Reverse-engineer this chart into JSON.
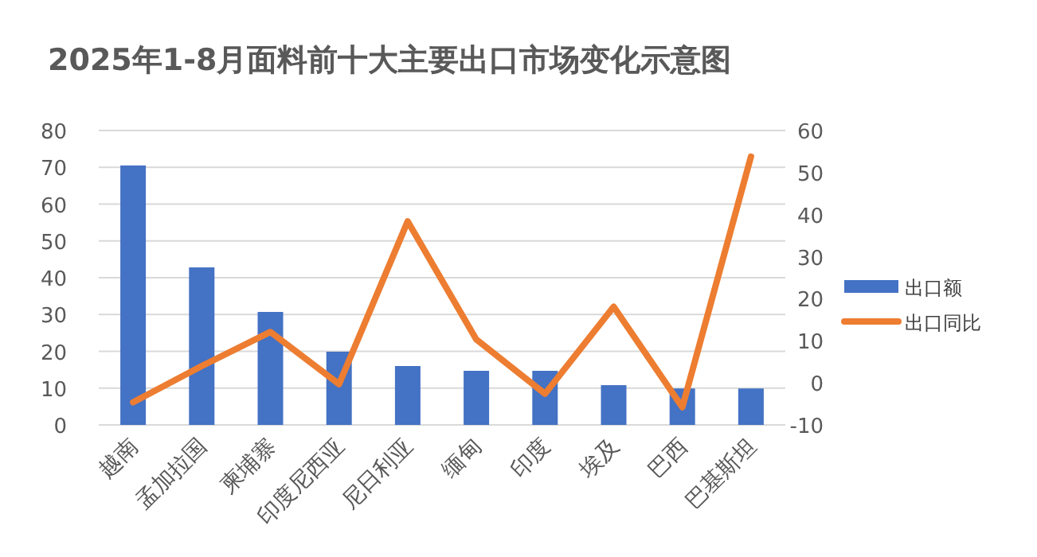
{
  "chart_data": {
    "type": "bar",
    "title": "2025年1-8月面料前十大主要出口市场变化示意图",
    "categories": [
      "越南",
      "孟加拉国",
      "柬埔寨",
      "印度尼西亚",
      "尼日利亚",
      "缅甸",
      "印度",
      "埃及",
      "巴西",
      "巴基斯坦"
    ],
    "series": [
      {
        "name": "出口额",
        "color": "#4472c4",
        "values": [
          70.5,
          42.8,
          30.7,
          19.9,
          16.0,
          14.7,
          14.7,
          10.8,
          9.9,
          9.9
        ]
      },
      {
        "name": "出口同比",
        "type": "line",
        "axis": "y2",
        "color": "#ed7d31",
        "values": [
          -4.6,
          4.0,
          12.1,
          -0.3,
          38.4,
          10.3,
          -2.6,
          18.1,
          -5.8,
          53.8
        ]
      }
    ],
    "ylim": [
      0,
      80
    ],
    "yticks": [
      0,
      10,
      20,
      30,
      40,
      50,
      60,
      70,
      80
    ],
    "y2lim": [
      -10,
      60
    ],
    "y2ticks": [
      -10,
      0,
      10,
      20,
      30,
      40,
      50,
      60
    ],
    "grid": "y",
    "legend": "right"
  }
}
